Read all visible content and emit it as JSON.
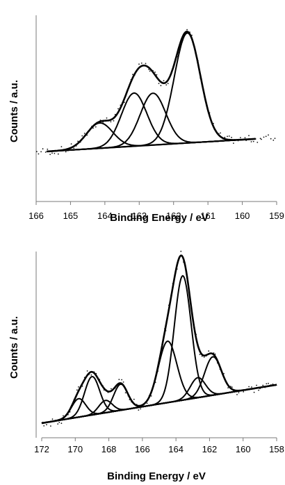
{
  "chart_data": [
    {
      "type": "line",
      "title": "",
      "xlabel": "Binding Energy / eV",
      "ylabel": "Counts / a.u.",
      "xlim": [
        166,
        159
      ],
      "x_reversed": true,
      "x_ticks": [
        "166",
        "165",
        "164",
        "163",
        "162",
        "161",
        "160",
        "159"
      ],
      "y_ticks_labeled": false,
      "grid": false,
      "legend": "none",
      "background": {
        "from": [
          165.7,
          0.0
        ],
        "to": [
          159.6,
          0.1
        ]
      },
      "peaks": [
        {
          "center": 164.15,
          "height": 0.2,
          "sigma": 0.38
        },
        {
          "center": 163.15,
          "height": 0.42,
          "sigma": 0.37
        },
        {
          "center": 162.6,
          "height": 0.41,
          "sigma": 0.37
        },
        {
          "center": 161.6,
          "height": 0.87,
          "sigma": 0.38
        }
      ],
      "series": [
        {
          "kind": "envelope",
          "y_range": [
            0,
            1.0
          ]
        },
        {
          "kind": "components",
          "count": 4
        },
        {
          "kind": "background"
        },
        {
          "kind": "data-points"
        }
      ]
    },
    {
      "type": "line",
      "title": "",
      "xlabel": "Binding Energy / eV",
      "ylabel": "Counts / a.u.",
      "xlim": [
        172,
        158
      ],
      "x_reversed": true,
      "x_ticks": [
        "172",
        "170",
        "168",
        "166",
        "164",
        "162",
        "160",
        "158"
      ],
      "y_ticks_labeled": false,
      "grid": false,
      "legend": "none",
      "background": {
        "from": [
          172,
          0.0
        ],
        "to": [
          158,
          0.25
        ]
      },
      "peaks": [
        {
          "center": 169.8,
          "height": 0.12,
          "sigma": 0.42
        },
        {
          "center": 169.0,
          "height": 0.25,
          "sigma": 0.45
        },
        {
          "center": 168.2,
          "height": 0.08,
          "sigma": 0.4
        },
        {
          "center": 167.3,
          "height": 0.17,
          "sigma": 0.42
        },
        {
          "center": 164.5,
          "height": 0.4,
          "sigma": 0.55
        },
        {
          "center": 163.6,
          "height": 0.81,
          "sigma": 0.5
        },
        {
          "center": 162.7,
          "height": 0.13,
          "sigma": 0.45
        },
        {
          "center": 161.8,
          "height": 0.25,
          "sigma": 0.5
        }
      ],
      "series": [
        {
          "kind": "envelope",
          "y_range": [
            0,
            1.0
          ]
        },
        {
          "kind": "components",
          "count": 8
        },
        {
          "kind": "background"
        },
        {
          "kind": "data-points"
        }
      ]
    }
  ]
}
